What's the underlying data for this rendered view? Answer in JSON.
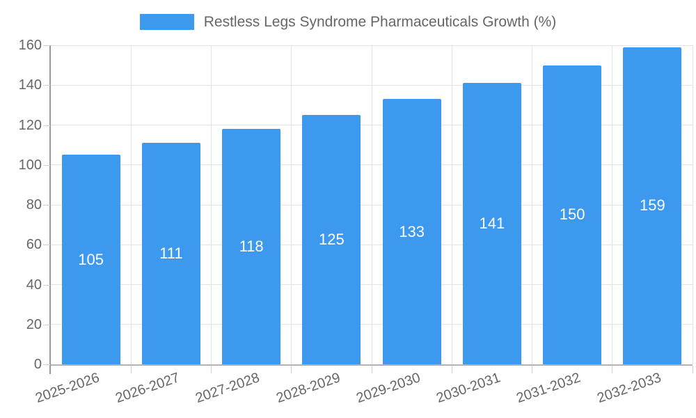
{
  "legend": {
    "label": "Restless Legs Syndrome Pharmaceuticals Growth (%)"
  },
  "chart_data": {
    "type": "bar",
    "title": "Restless Legs Syndrome Pharmaceuticals Growth (%)",
    "categories": [
      "2025-2026",
      "2026-2027",
      "2027-2028",
      "2028-2029",
      "2029-2030",
      "2030-2031",
      "2031-2032",
      "2032-2033"
    ],
    "values": [
      105,
      111,
      118,
      125,
      133,
      141,
      150,
      159
    ],
    "xlabel": "",
    "ylabel": "",
    "ylim": [
      0,
      160
    ],
    "yticks": [
      0,
      20,
      40,
      60,
      80,
      100,
      120,
      140,
      160
    ],
    "grid": true,
    "legend_position": "top-center",
    "bar_label_position": "inside-center"
  },
  "colors": {
    "bar": "#3C99ED",
    "text": "#666666",
    "gridline": "#E3E3E3",
    "axis_y_line": "#999999",
    "axis_x_line": "#B3B3B3",
    "tick_mark": "#CFCFCF",
    "background": "#FFFFFF",
    "bar_label": "#FFFFFF"
  }
}
